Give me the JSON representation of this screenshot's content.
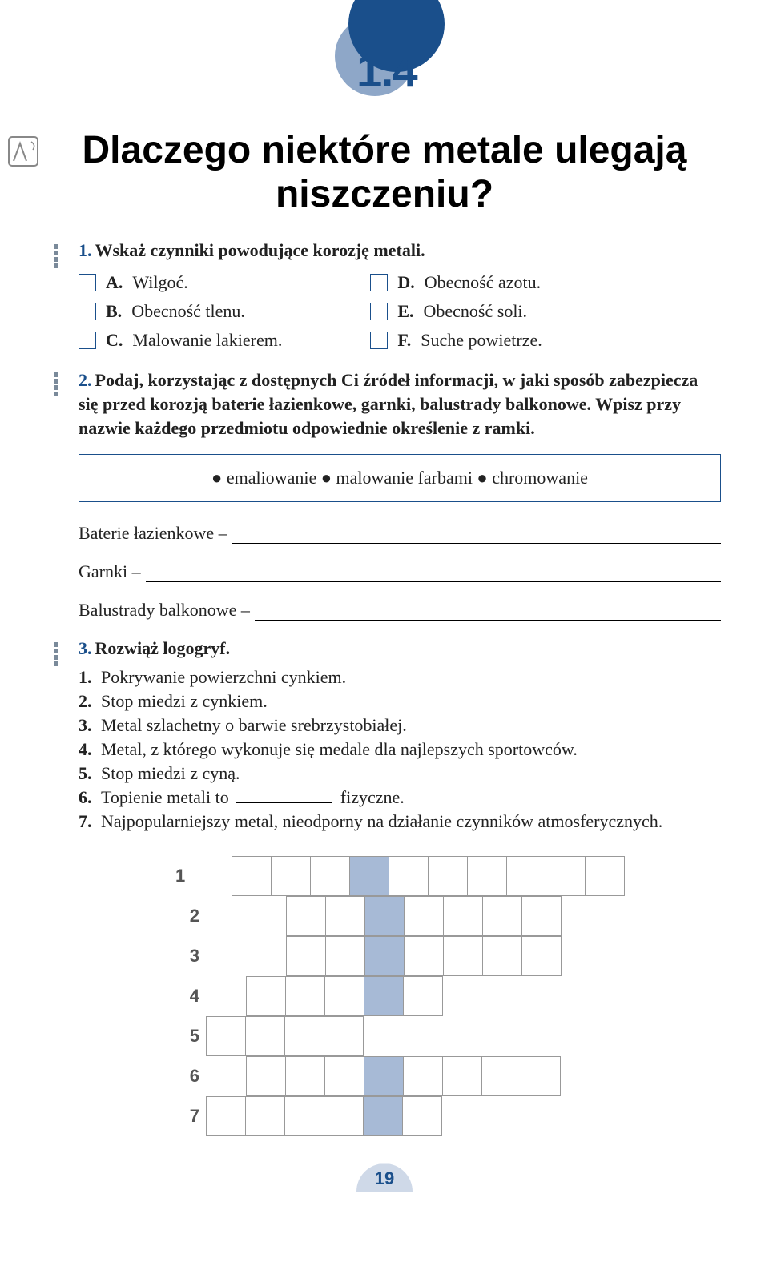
{
  "badge_number": "1.4",
  "title": "Dlaczego niektóre metale ulegają niszczeniu?",
  "q1": {
    "num": "1.",
    "text": "Wskaż czynniki powodujące korozję metali.",
    "left": [
      {
        "l": "A.",
        "t": "Wilgoć."
      },
      {
        "l": "B.",
        "t": "Obecność tlenu."
      },
      {
        "l": "C.",
        "t": "Malowanie lakierem."
      }
    ],
    "right": [
      {
        "l": "D.",
        "t": "Obecność azotu."
      },
      {
        "l": "E.",
        "t": "Obecność soli."
      },
      {
        "l": "F.",
        "t": "Suche powietrze."
      }
    ]
  },
  "q2": {
    "num": "2.",
    "text": "Podaj, korzystając z dostępnych Ci źródeł informacji, w jaki sposób zabezpiecza się przed korozją baterie łazienkowe, garnki, balustrady balkonowe. Wpisz przy nazwie każdego przedmiotu odpowiednie określenie z ramki.",
    "box": "● emaliowanie ● malowanie farbami ● chromowanie",
    "rows": [
      "Baterie łazienkowe –",
      "Garnki –",
      "Balustrady balkonowe –"
    ]
  },
  "q3": {
    "num": "3.",
    "title": "Rozwiąż logogryf.",
    "clues": [
      {
        "n": "1.",
        "t": "Pokrywanie powierzchni cynkiem."
      },
      {
        "n": "2.",
        "t": "Stop miedzi z cynkiem."
      },
      {
        "n": "3.",
        "t": "Metal szlachetny o barwie srebrzystobiałej."
      },
      {
        "n": "4.",
        "t": "Metal, z którego wykonuje się medale dla najlepszych sportowców."
      },
      {
        "n": "5.",
        "t": "Stop miedzi z cyną."
      },
      {
        "n": "6.",
        "t_pre": "Topienie metali to",
        "t_post": "fizyczne."
      },
      {
        "n": "7.",
        "t": "Najpopularniejszy metal, nieodporny na działanie czynników atmosferycznych."
      }
    ],
    "grid": {
      "solution_col": 4,
      "rows": [
        {
          "n": "1",
          "offset": 1,
          "len": 10
        },
        {
          "n": "2",
          "offset": 2,
          "len": 7
        },
        {
          "n": "3",
          "offset": 2,
          "len": 7
        },
        {
          "n": "4",
          "offset": 1,
          "len": 5
        },
        {
          "n": "5",
          "offset": 0,
          "len": 4
        },
        {
          "n": "6",
          "offset": 1,
          "len": 8
        },
        {
          "n": "7",
          "offset": 0,
          "len": 6
        }
      ]
    }
  },
  "page_number": "19"
}
